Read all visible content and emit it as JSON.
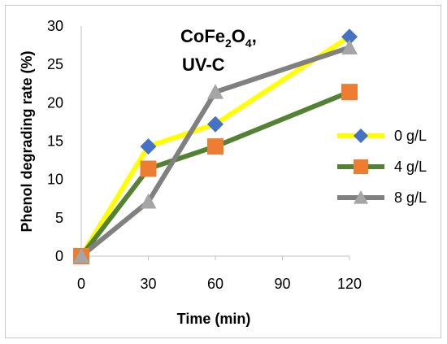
{
  "chart_data": {
    "type": "line",
    "x": [
      0,
      30,
      60,
      120
    ],
    "xticks": [
      "0",
      "30",
      "60",
      "90",
      "120"
    ],
    "yticks": [
      "0",
      "5",
      "10",
      "15",
      "20",
      "25",
      "30"
    ],
    "xlabel": "Time (min)",
    "ylabel": "Phenol degrading rate (%)",
    "annotation": {
      "line1_main": "CoFe",
      "line1_sub1": "2",
      "line1_mid": "O",
      "line1_sub2": "4",
      "line1_tail": ",",
      "line2": "UV-C"
    },
    "xlim": [
      0,
      120
    ],
    "ylim": [
      0,
      30
    ],
    "grid": false,
    "legend_position": "right",
    "series": [
      {
        "name": "0 g/L",
        "values": [
          0,
          14.3,
          17.2,
          28.6
        ],
        "line_color": "#ffff00",
        "marker_color": "#4472c4",
        "marker": "diamond"
      },
      {
        "name": "4 g/L",
        "values": [
          0,
          11.4,
          14.3,
          21.4
        ],
        "line_color": "#548235",
        "marker_color": "#ed7d31",
        "marker": "square"
      },
      {
        "name": "8 g/L",
        "values": [
          0,
          7.1,
          21.4,
          27.2
        ],
        "line_color": "#808080",
        "marker_color": "#a5a5a5",
        "marker": "triangle"
      }
    ]
  }
}
